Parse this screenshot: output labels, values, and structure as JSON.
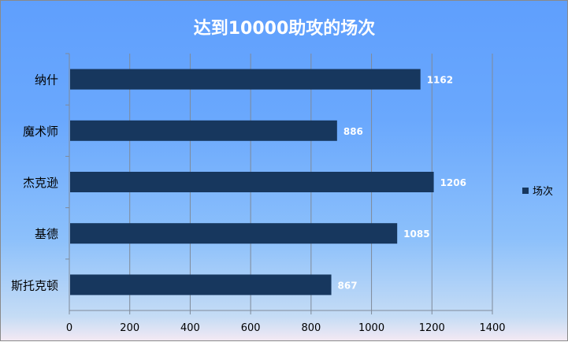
{
  "chart_data": {
    "type": "bar",
    "orientation": "horizontal",
    "title": "达到10000助攻的场次",
    "categories": [
      "纳什",
      "魔术师",
      "杰克逊",
      "基德",
      "斯托克顿"
    ],
    "series": [
      {
        "name": "场次",
        "values": [
          1162,
          886,
          1206,
          1085,
          867
        ],
        "color": "#17375e"
      }
    ],
    "xlim": [
      0,
      1400
    ],
    "xticks": [
      0,
      200,
      400,
      600,
      800,
      1000,
      1200,
      1400
    ],
    "grid": "vertical",
    "legend": "right",
    "data_labels": true
  }
}
